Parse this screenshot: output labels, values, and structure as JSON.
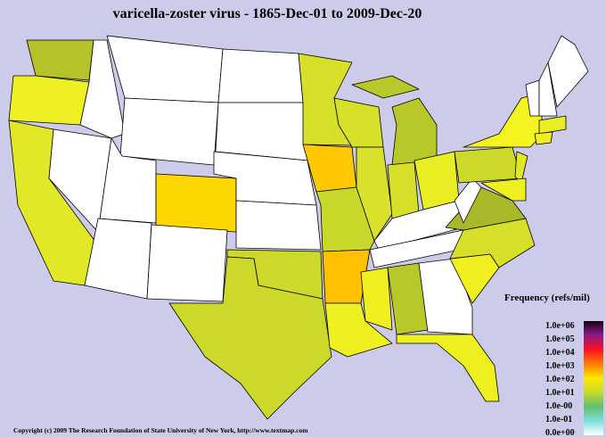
{
  "title": "varicella-zoster virus - 1865-Dec-01 to 2009-Dec-20",
  "legend": {
    "title": "Frequency (refs/mil)",
    "labels": [
      "1.0e+06",
      "1.0e+05",
      "1.0e+04",
      "1.0e+03",
      "1.0e+02",
      "1.0e+01",
      "1.0e-00",
      "1.0e-01",
      "0.0e+00"
    ]
  },
  "footer": "Copyright (c) 2009 The Research Foundation of State University of New York, http://www.textmap.com"
}
